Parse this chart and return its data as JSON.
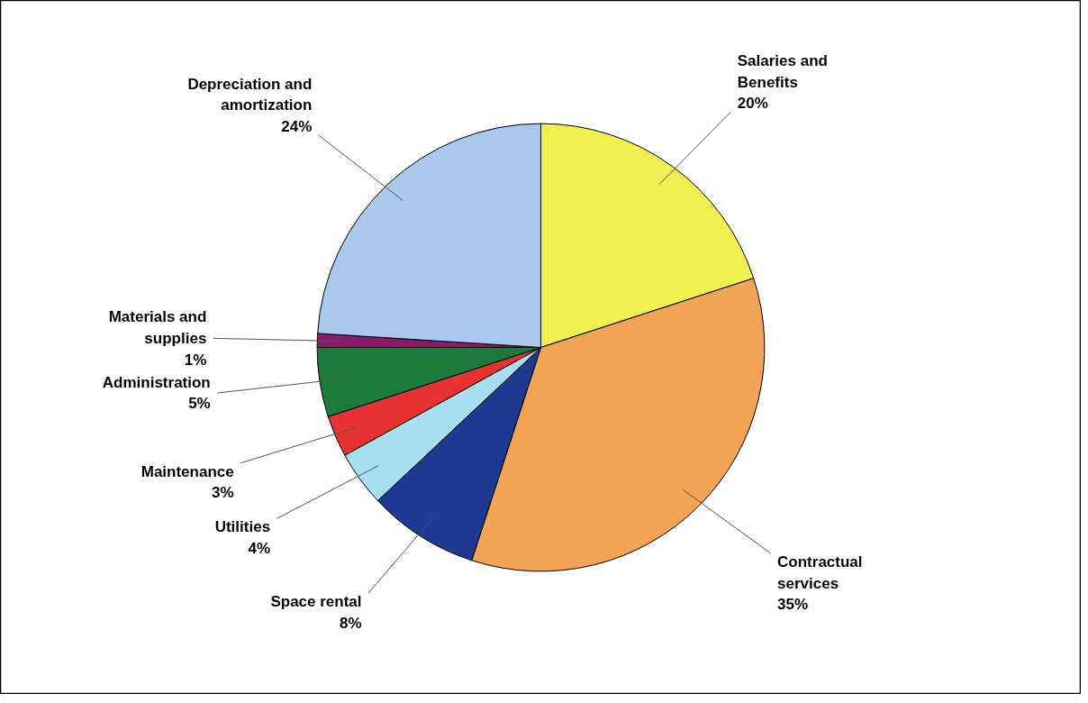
{
  "chart_data": {
    "type": "pie",
    "categories": [
      "Salaries and Benefits",
      "Contractual services",
      "Space rental",
      "Utilities",
      "Maintenance",
      "Administration",
      "Materials and supplies",
      "Depreciation and amortization"
    ],
    "values": [
      20,
      35,
      8,
      4,
      3,
      5,
      1,
      24
    ],
    "value_labels": [
      "20%",
      "35%",
      "8%",
      "4%",
      "3%",
      "5%",
      "1%",
      "24%"
    ],
    "colors": [
      "#f0f050",
      "#f2a353",
      "#1f3a93",
      "#a6e0f0",
      "#e83232",
      "#1b7a3c",
      "#8a1a6a",
      "#a9c8ec"
    ]
  }
}
